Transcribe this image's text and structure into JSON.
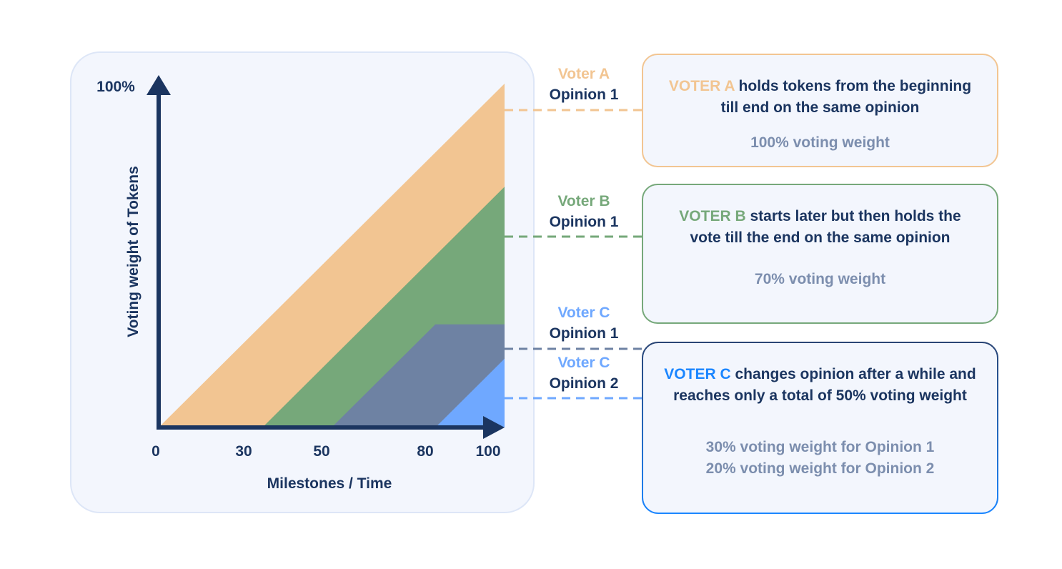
{
  "colors": {
    "voter_a": "#f2c592",
    "voter_b": "#76a87a",
    "voter_c_opinion1": "#6e82a3",
    "voter_c_opinion2": "#6fa8ff",
    "axis": "#1b3560",
    "voter_c_card_accent": "#1b86ff"
  },
  "chart": {
    "y_axis_top_label": "100%",
    "y_axis_title": "Voting weight of Tokens",
    "x_axis_title": "Milestones / Time",
    "x_ticks": [
      "0",
      "30",
      "50",
      "80",
      "100"
    ]
  },
  "chart_data": {
    "type": "area",
    "xlabel": "Milestones / Time",
    "ylabel": "Voting weight of Tokens",
    "x_ticks": [
      0,
      30,
      50,
      80,
      100
    ],
    "series": [
      {
        "name": "Voter A Opinion 1",
        "x": [
          0,
          100
        ],
        "y": [
          0,
          100
        ]
      },
      {
        "name": "Voter B Opinion 1",
        "x": [
          30,
          100
        ],
        "y": [
          0,
          70
        ]
      },
      {
        "name": "Voter C Opinion 1",
        "x": [
          50,
          80,
          100
        ],
        "y": [
          0,
          30,
          30
        ]
      },
      {
        "name": "Voter C Opinion 2",
        "x": [
          80,
          100
        ],
        "y": [
          0,
          20
        ]
      }
    ]
  },
  "labels": [
    {
      "voter": "Voter A",
      "opinion": "Opinion 1",
      "voter_color": "#f2c592"
    },
    {
      "voter": "Voter B",
      "opinion": "Opinion 1",
      "voter_color": "#76a87a"
    },
    {
      "voter": "Voter C",
      "opinion": "Opinion 1",
      "voter_color": "#6fa8ff"
    },
    {
      "voter": "Voter C",
      "opinion": "Opinion 2",
      "voter_color": "#6fa8ff"
    }
  ],
  "cards": {
    "a": {
      "highlight": "VOTER A",
      "text": " holds tokens from the beginning till end on the same opinion",
      "weight": "100% voting weight"
    },
    "b": {
      "highlight": "VOTER B",
      "text": " starts later but then holds the vote till the end on the same opinion",
      "weight": "70% voting weight"
    },
    "c": {
      "highlight": "VOTER C",
      "text": " changes opinion after a while and reaches only a total of 50% voting weight",
      "weight1": "30% voting weight for Opinion 1",
      "weight2": "20% voting weight for Opinion 2"
    }
  }
}
